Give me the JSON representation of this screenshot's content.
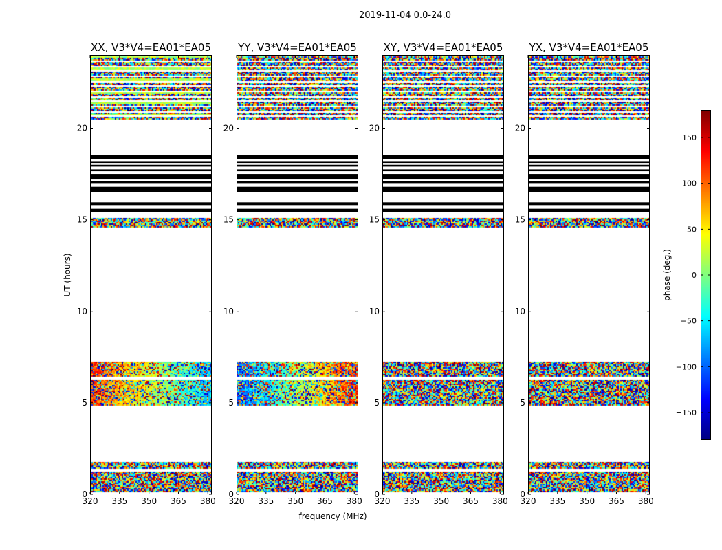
{
  "chart_data": {
    "type": "heatmap",
    "suptitle": "2019-11-04 0.0-24.0",
    "xlabel": "frequency (MHz)",
    "ylabel": "UT (hours)",
    "xlim": [
      320,
      382
    ],
    "ylim": [
      0,
      24
    ],
    "xticks": [
      "320",
      "335",
      "350",
      "365",
      "380"
    ],
    "yticks": [
      "0",
      "5",
      "10",
      "15",
      "20"
    ],
    "panels": [
      {
        "title": "XX, V3*V4=EA01*EA05",
        "pattern": "XX"
      },
      {
        "title": "YY, V3*V4=EA01*EA05",
        "pattern": "YY"
      },
      {
        "title": "XY, V3*V4=EA01*EA05",
        "pattern": "XY"
      },
      {
        "title": "YX, V3*V4=EA01*EA05",
        "pattern": "YX"
      }
    ],
    "data_bands_hours": [
      {
        "from": 0.15,
        "to": 1.75
      },
      {
        "from": 4.9,
        "to": 7.25
      },
      {
        "from": 14.6,
        "to": 15.1
      },
      {
        "from": 20.5,
        "to": 24.0
      }
    ],
    "flagged_black_bands_hours": [
      [
        15.4,
        15.6
      ],
      [
        15.8,
        15.95
      ],
      [
        16.5,
        16.8
      ],
      [
        17.0,
        17.1
      ],
      [
        17.2,
        17.5
      ],
      [
        17.65,
        17.75
      ],
      [
        17.9,
        18.0
      ],
      [
        18.1,
        18.2
      ],
      [
        18.3,
        18.55
      ]
    ],
    "colorbar": {
      "label": "phase (deg.)",
      "range": [
        -180,
        180
      ],
      "ticks": [
        "150",
        "100",
        "50",
        "0",
        "−50",
        "−100",
        "−150"
      ],
      "tick_values": [
        150,
        100,
        50,
        0,
        -50,
        -100,
        -150
      ],
      "colormap": "jet"
    }
  }
}
